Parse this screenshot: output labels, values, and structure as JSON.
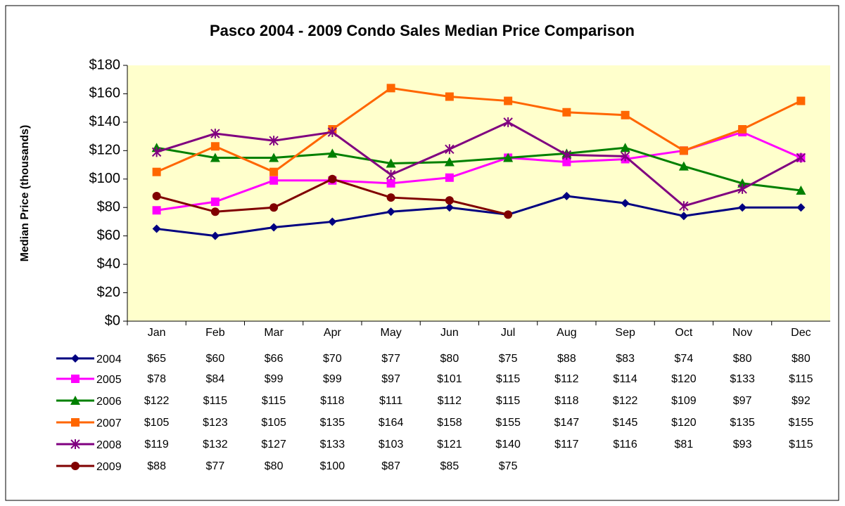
{
  "chart_data": {
    "type": "line",
    "title": "Pasco 2004 - 2009 Condo Sales Median Price Comparison",
    "y_label": "Median Price (thousands)",
    "categories": [
      "Jan",
      "Feb",
      "Mar",
      "Apr",
      "May",
      "Jun",
      "Jul",
      "Aug",
      "Sep",
      "Oct",
      "Nov",
      "Dec"
    ],
    "ylim": [
      0,
      180
    ],
    "yticks": [
      {
        "value": 0,
        "label": "$0"
      },
      {
        "value": 20,
        "label": "$20"
      },
      {
        "value": 40,
        "label": "$40"
      },
      {
        "value": 60,
        "label": "$60"
      },
      {
        "value": 80,
        "label": "$80"
      },
      {
        "value": 100,
        "label": "$100"
      },
      {
        "value": 120,
        "label": "$120"
      },
      {
        "value": 140,
        "label": "$140"
      },
      {
        "value": 160,
        "label": "$160"
      },
      {
        "value": 180,
        "label": "$180"
      }
    ],
    "grid": false,
    "background": "#ffffcc",
    "series": [
      {
        "name": "2004",
        "color": "#000080",
        "marker": "diamond",
        "values": [
          65,
          60,
          66,
          70,
          77,
          80,
          75,
          88,
          83,
          74,
          80,
          80
        ],
        "value_labels": [
          "$65",
          "$60",
          "$66",
          "$70",
          "$77",
          "$80",
          "$75",
          "$88",
          "$83",
          "$74",
          "$80",
          "$80"
        ]
      },
      {
        "name": "2005",
        "color": "#ff00ff",
        "marker": "square",
        "values": [
          78,
          84,
          99,
          99,
          97,
          101,
          115,
          112,
          114,
          120,
          133,
          115
        ],
        "value_labels": [
          "$78",
          "$84",
          "$99",
          "$99",
          "$97",
          "$101",
          "$115",
          "$112",
          "$114",
          "$120",
          "$133",
          "$115"
        ]
      },
      {
        "name": "2006",
        "color": "#008000",
        "marker": "triangle",
        "values": [
          122,
          115,
          115,
          118,
          111,
          112,
          115,
          118,
          122,
          109,
          97,
          92
        ],
        "value_labels": [
          "$122",
          "$115",
          "$115",
          "$118",
          "$111",
          "$112",
          "$115",
          "$118",
          "$122",
          "$109",
          "$97",
          "$92"
        ]
      },
      {
        "name": "2007",
        "color": "#ff6600",
        "marker": "square",
        "values": [
          105,
          123,
          105,
          135,
          164,
          158,
          155,
          147,
          145,
          120,
          135,
          155
        ],
        "value_labels": [
          "$105",
          "$123",
          "$105",
          "$135",
          "$164",
          "$158",
          "$155",
          "$147",
          "$145",
          "$120",
          "$135",
          "$155"
        ]
      },
      {
        "name": "2008",
        "color": "#800080",
        "marker": "star",
        "values": [
          119,
          132,
          127,
          133,
          103,
          121,
          140,
          117,
          116,
          81,
          93,
          115
        ],
        "value_labels": [
          "$119",
          "$132",
          "$127",
          "$133",
          "$103",
          "$121",
          "$140",
          "$117",
          "$116",
          "$81",
          "$93",
          "$115"
        ]
      },
      {
        "name": "2009",
        "color": "#800000",
        "marker": "circle",
        "values": [
          88,
          77,
          80,
          100,
          87,
          85,
          75,
          null,
          null,
          null,
          null,
          null
        ],
        "value_labels": [
          "$88",
          "$77",
          "$80",
          "$100",
          "$87",
          "$85",
          "$75",
          null,
          null,
          null,
          null,
          null
        ]
      }
    ]
  }
}
